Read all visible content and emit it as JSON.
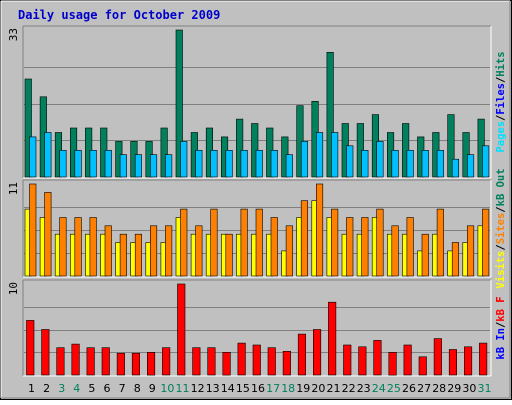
{
  "chart_data": {
    "type": "bar",
    "title": "Daily usage for October 2009",
    "categories": [
      "1",
      "2",
      "3",
      "4",
      "5",
      "6",
      "7",
      "8",
      "9",
      "10",
      "11",
      "12",
      "13",
      "14",
      "15",
      "16",
      "17",
      "18",
      "19",
      "20",
      "21",
      "22",
      "23",
      "24",
      "25",
      "26",
      "27",
      "28",
      "29",
      "30",
      "31"
    ],
    "weekend_days": [
      "3",
      "4",
      "10",
      "11",
      "17",
      "18",
      "24",
      "25",
      "31"
    ],
    "colors": {
      "hits": "#00805c",
      "files": "#00c0ff",
      "pages": "#00e0ff",
      "visits": "#ffff00",
      "sites": "#ff8000",
      "kbin": "#0000ff",
      "kbout": "#00805c",
      "kbf": "#ff0000",
      "weekday_label": "#000000",
      "weekend_label": "#00805c",
      "title": "#0000cc"
    },
    "panels": [
      {
        "id": "hits-files-pages",
        "ymax_label": "33",
        "ylim": [
          0,
          33
        ],
        "legend": [
          {
            "text": "Pages",
            "color": "#00e0ff"
          },
          {
            "text": "/",
            "color": "#000000"
          },
          {
            "text": "Files",
            "color": "#0000ff"
          },
          {
            "text": "/",
            "color": "#000000"
          },
          {
            "text": "Hits",
            "color": "#00805c"
          }
        ],
        "series": [
          {
            "name": "Hits",
            "color": "#00805c",
            "values": [
              22,
              18,
              10,
              11,
              11,
              11,
              8,
              8,
              8,
              11,
              33,
              10,
              11,
              9,
              13,
              12,
              11,
              9,
              16,
              17,
              28,
              12,
              12,
              14,
              10,
              12,
              9,
              10,
              14,
              10,
              13
            ]
          },
          {
            "name": "Files",
            "color": "#00c0ff",
            "values": [
              9,
              10,
              6,
              6,
              6,
              6,
              5,
              5,
              5,
              5,
              8,
              6,
              6,
              6,
              6,
              6,
              6,
              5,
              8,
              10,
              10,
              7,
              6,
              8,
              6,
              6,
              6,
              6,
              4,
              5,
              7
            ]
          }
        ]
      },
      {
        "id": "visits-sites",
        "ymax_label": "11",
        "ylim": [
          0,
          11
        ],
        "legend": [
          {
            "text": "Visits",
            "color": "#ffff00"
          },
          {
            "text": "/",
            "color": "#000000"
          },
          {
            "text": "Sites",
            "color": "#ff8000"
          },
          {
            "text": "/",
            "color": "#000000"
          },
          {
            "text": "kB Out",
            "color": "#00805c"
          }
        ],
        "series": [
          {
            "name": "Visits",
            "color": "#ffff00",
            "values": [
              8,
              7,
              5,
              5,
              5,
              5,
              4,
              4,
              4,
              4,
              7,
              5,
              5,
              5,
              5,
              5,
              5,
              3,
              7,
              9,
              7,
              5,
              5,
              7,
              5,
              5,
              3,
              5,
              3,
              4,
              6
            ]
          },
          {
            "name": "Sites",
            "color": "#ff8000",
            "values": [
              11,
              10,
              7,
              7,
              7,
              6,
              5,
              5,
              6,
              6,
              8,
              6,
              8,
              5,
              8,
              8,
              7,
              6,
              9,
              11,
              8,
              7,
              7,
              8,
              6,
              7,
              5,
              8,
              4,
              6,
              8
            ]
          }
        ]
      },
      {
        "id": "kbytes",
        "ymax_label": "10",
        "ylim": [
          0,
          10
        ],
        "legend": [
          {
            "text": "kB In",
            "color": "#0000ff"
          },
          {
            "text": "/",
            "color": "#000000"
          },
          {
            "text": "kB F",
            "color": "#ff0000"
          }
        ],
        "series": [
          {
            "name": "kB F",
            "color": "#ff0000",
            "values": [
              6,
              5,
              3,
              3.4,
              3,
              3,
              2.4,
              2.4,
              2.5,
              3,
              10,
              3,
              3,
              2.5,
              3.5,
              3.3,
              3,
              2.6,
              4.5,
              5,
              8,
              3.3,
              3.1,
              3.8,
              2.5,
              3.3,
              2,
              4,
              2.8,
              3.1,
              3.5
            ]
          }
        ]
      }
    ]
  }
}
